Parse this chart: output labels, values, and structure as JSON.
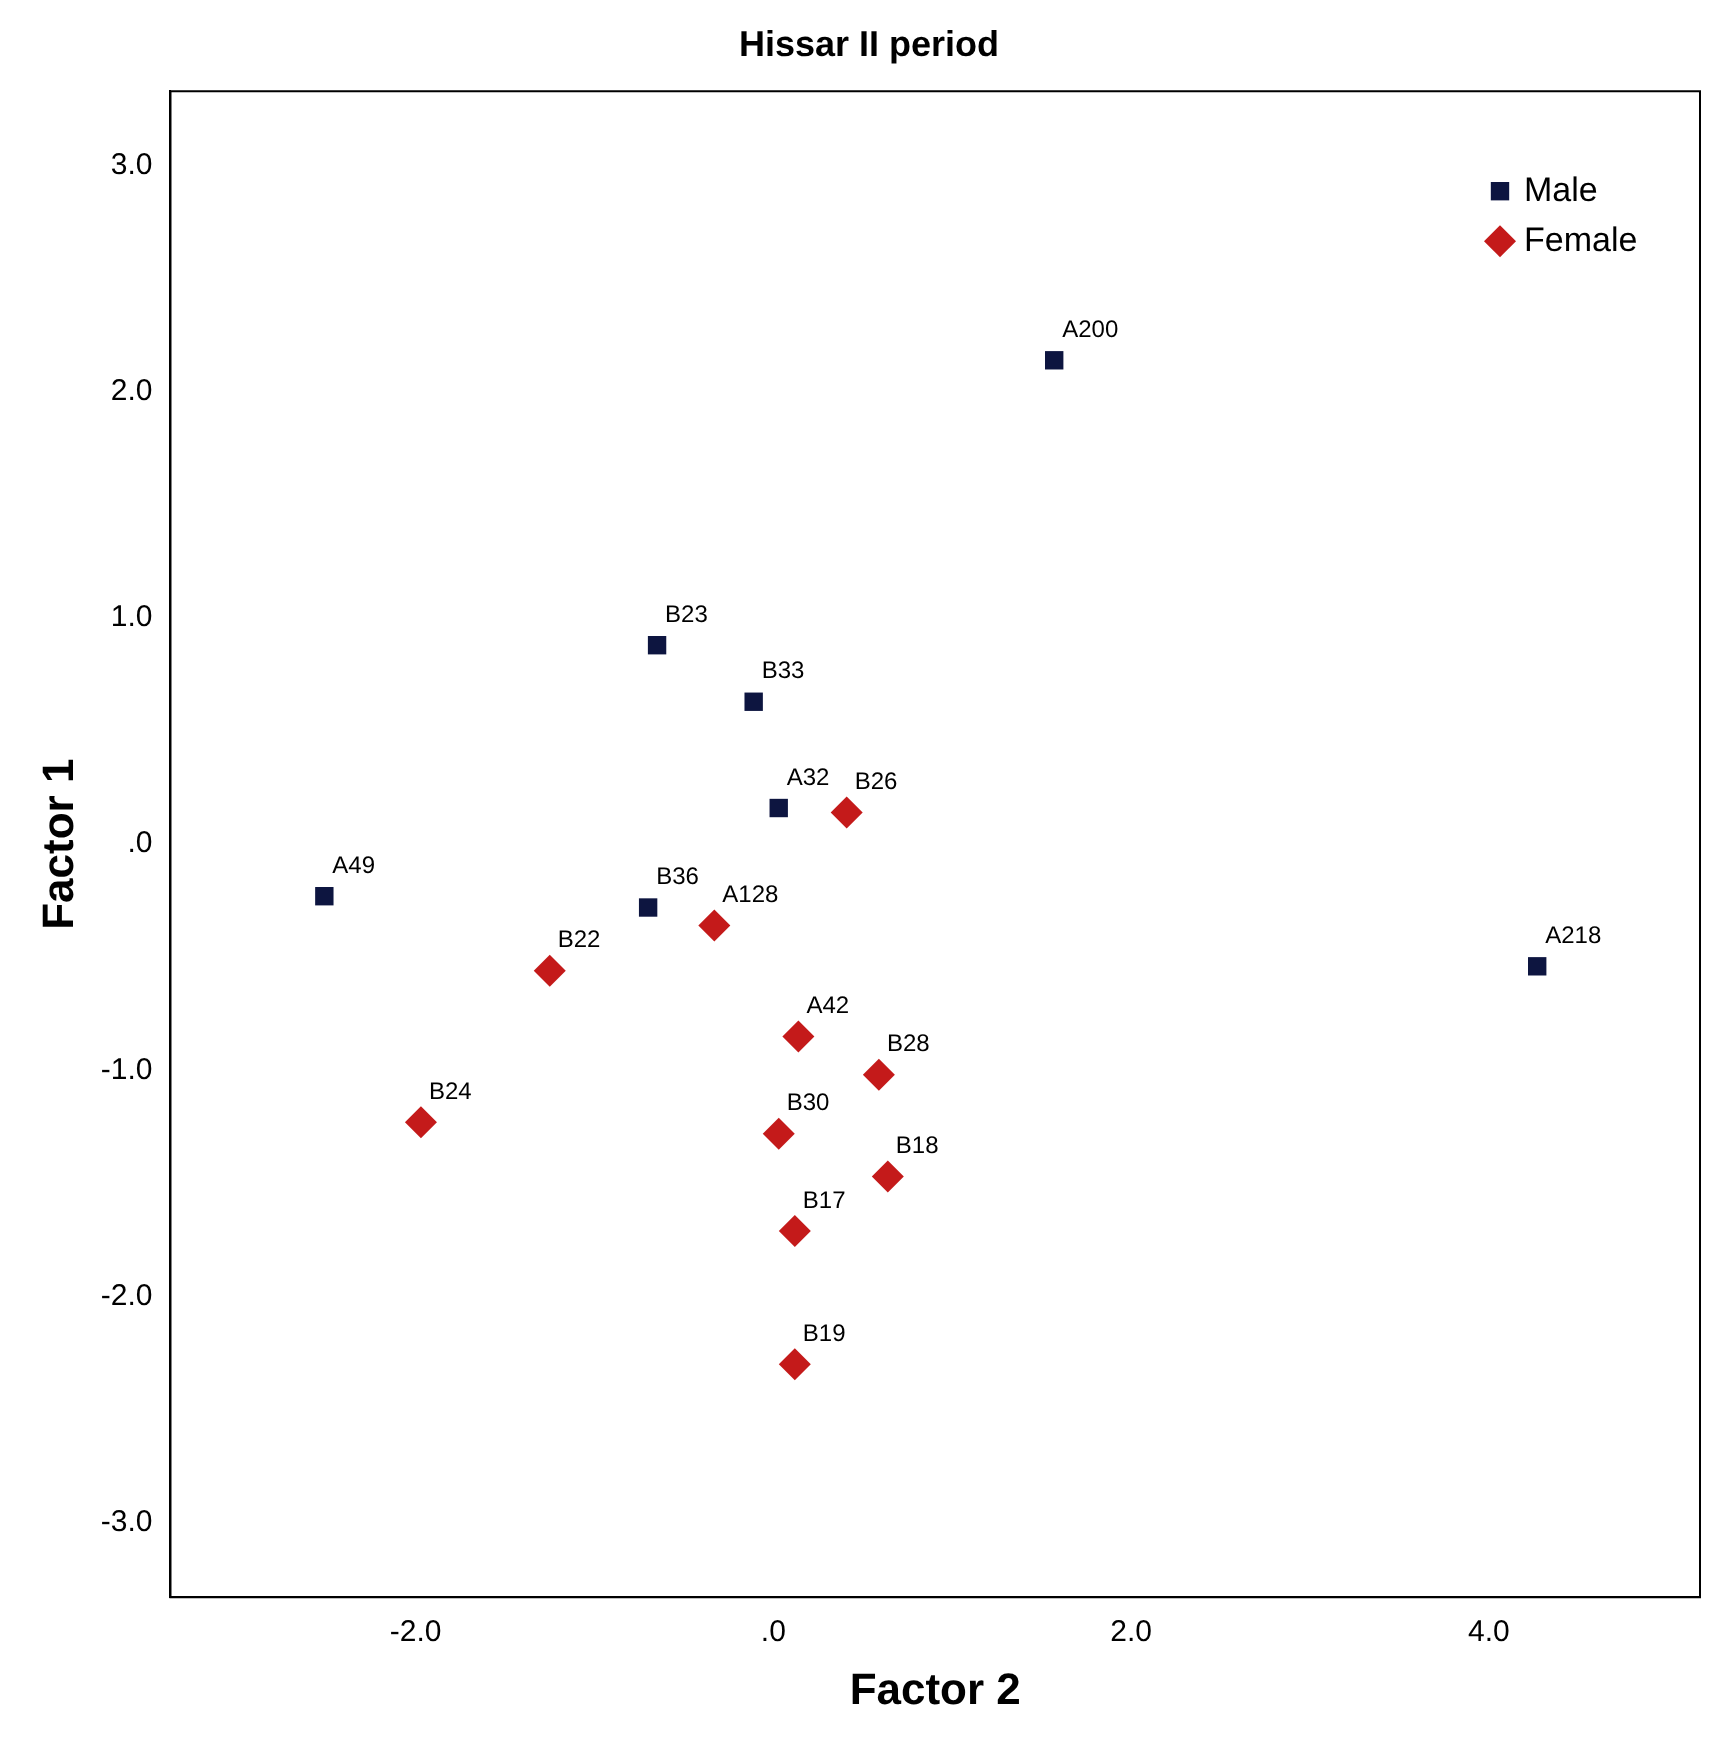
{
  "chart_data": {
    "type": "scatter",
    "title": "Hissar II period",
    "xlabel": "Factor 2",
    "ylabel": "Factor 1",
    "xlim": [
      -3.37,
      5.18
    ],
    "ylim": [
      -3.33,
      3.33
    ],
    "xticks": [
      {
        "value": -2,
        "label": "-2.0"
      },
      {
        "value": 0,
        "label": ".0"
      },
      {
        "value": 2,
        "label": "2.0"
      },
      {
        "value": 4,
        "label": "4.0"
      }
    ],
    "yticks": [
      {
        "value": -3,
        "label": "-3.0"
      },
      {
        "value": -2,
        "label": "-2.0"
      },
      {
        "value": -1,
        "label": "-1.0"
      },
      {
        "value": 0,
        "label": ".0"
      },
      {
        "value": 1,
        "label": "1.0"
      },
      {
        "value": 2,
        "label": "2.0"
      },
      {
        "value": 3,
        "label": "3.0"
      }
    ],
    "grid": false,
    "legend": "top right",
    "series": [
      {
        "name": "Male",
        "color": "#0d1540",
        "marker": "square",
        "x": [
          1.57,
          -0.65,
          -0.11,
          0.03,
          -2.51,
          -0.7,
          4.27
        ],
        "values": [
          2.14,
          0.88,
          0.63,
          0.16,
          -0.23,
          -0.28,
          -0.54
        ]
      },
      {
        "name": "Female",
        "color": "#c41a1a",
        "marker": "diamond",
        "x": [
          0.41,
          -0.33,
          -1.25,
          0.14,
          0.59,
          -1.97,
          0.03,
          0.64,
          0.12,
          0.12
        ],
        "values": [
          0.14,
          -0.36,
          -0.56,
          -0.85,
          -1.02,
          -1.23,
          -1.28,
          -1.47,
          -1.71,
          -2.3
        ]
      }
    ],
    "annotations": [
      {
        "text": "A200",
        "x": 1.57,
        "y": 2.14
      },
      {
        "text": "B23",
        "x": -0.65,
        "y": 0.88
      },
      {
        "text": "B33",
        "x": -0.11,
        "y": 0.63
      },
      {
        "text": "A32",
        "x": 0.03,
        "y": 0.16
      },
      {
        "text": "A49",
        "x": -2.51,
        "y": -0.23
      },
      {
        "text": "B36",
        "x": -0.7,
        "y": -0.28
      },
      {
        "text": "A218",
        "x": 4.27,
        "y": -0.54
      },
      {
        "text": "B26",
        "x": 0.41,
        "y": 0.14
      },
      {
        "text": "A128",
        "x": -0.33,
        "y": -0.36
      },
      {
        "text": "B22",
        "x": -1.25,
        "y": -0.56
      },
      {
        "text": "A42",
        "x": 0.14,
        "y": -0.85
      },
      {
        "text": "B28",
        "x": 0.59,
        "y": -1.02
      },
      {
        "text": "B24",
        "x": -1.97,
        "y": -1.23
      },
      {
        "text": "B30",
        "x": 0.03,
        "y": -1.28
      },
      {
        "text": "B18",
        "x": 0.64,
        "y": -1.47
      },
      {
        "text": "B17",
        "x": 0.12,
        "y": -1.71
      },
      {
        "text": "B19",
        "x": 0.12,
        "y": -2.3
      }
    ]
  }
}
